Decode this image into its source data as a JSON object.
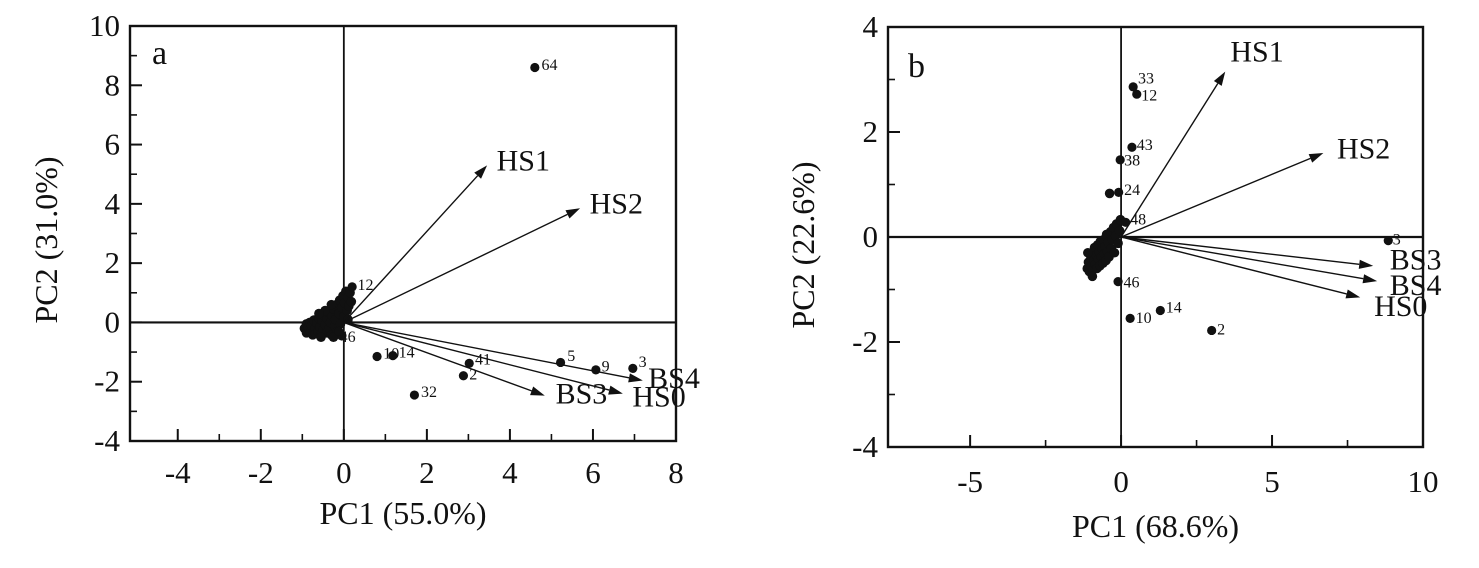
{
  "figure": {
    "description": "Two PCA biplot panels",
    "colors": {
      "ink": "#111111",
      "background": "#ffffff"
    }
  },
  "chart_data": [
    {
      "type": "scatter",
      "panel_letter": "a",
      "xlabel": "PC1 (55.0%)",
      "ylabel": "PC2 (31.0%)",
      "xlim": [
        -5.15,
        8
      ],
      "ylim": [
        -4,
        10
      ],
      "xticks": [
        -4,
        -2,
        0,
        2,
        4,
        6,
        8
      ],
      "yticks": [
        -4,
        -2,
        0,
        2,
        4,
        6,
        8,
        10
      ],
      "xticks_minor": [
        -3,
        -1,
        1,
        3,
        5,
        7
      ],
      "yticks_minor": [
        -3,
        -1,
        1,
        3,
        5,
        7,
        9
      ],
      "grid": false,
      "loadings": [
        {
          "name": "HS1",
          "x": 3.45,
          "y": 5.3,
          "lx": 3.68,
          "ly": 5.12
        },
        {
          "name": "HS2",
          "x": 5.69,
          "y": 3.85,
          "lx": 5.92,
          "ly": 3.68
        },
        {
          "name": "BS4",
          "x": 7.2,
          "y": -1.96,
          "lx": 7.33,
          "ly": -2.22
        },
        {
          "name": "BS3",
          "x": 4.84,
          "y": -2.47,
          "lx": 5.1,
          "ly": -2.74
        },
        {
          "name": "HS0",
          "x": 6.72,
          "y": -2.4,
          "lx": 6.95,
          "ly": -2.84
        }
      ],
      "labeled_points": [
        {
          "label": "64",
          "x": 4.6,
          "y": 8.6,
          "lx": 4.76,
          "ly": 8.52
        },
        {
          "label": "12",
          "x": 0.2,
          "y": 1.2,
          "lx": 0.33,
          "ly": 1.1
        },
        {
          "label": "46",
          "x": -0.12,
          "y": -0.3,
          "lx": -0.1,
          "ly": -0.66
        },
        {
          "label": "10",
          "x": 0.8,
          "y": -1.15,
          "lx": 0.95,
          "ly": -1.22
        },
        {
          "label": "14",
          "x": 1.18,
          "y": -1.12,
          "lx": 1.32,
          "ly": -1.18
        },
        {
          "label": "41",
          "x": 3.02,
          "y": -1.38,
          "lx": 3.16,
          "ly": -1.42
        },
        {
          "label": "2",
          "x": 2.88,
          "y": -1.8,
          "lx": 3.02,
          "ly": -1.92
        },
        {
          "label": "32",
          "x": 1.7,
          "y": -2.45,
          "lx": 1.86,
          "ly": -2.52
        },
        {
          "label": "5",
          "x": 5.22,
          "y": -1.35,
          "lx": 5.38,
          "ly": -1.3
        },
        {
          "label": "9",
          "x": 6.07,
          "y": -1.6,
          "lx": 6.21,
          "ly": -1.66
        },
        {
          "label": "3",
          "x": 6.96,
          "y": -1.55,
          "lx": 7.1,
          "ly": -1.5
        }
      ],
      "cluster_points": [
        [
          -0.95,
          -0.2
        ],
        [
          -0.9,
          -0.05
        ],
        [
          -0.9,
          -0.35
        ],
        [
          -0.85,
          -0.18
        ],
        [
          -0.82,
          0.0
        ],
        [
          -0.8,
          -0.32
        ],
        [
          -0.78,
          -0.1
        ],
        [
          -0.75,
          -0.42
        ],
        [
          -0.72,
          0.08
        ],
        [
          -0.7,
          -0.22
        ],
        [
          -0.68,
          -0.38
        ],
        [
          -0.65,
          -0.02
        ],
        [
          -0.62,
          -0.3
        ],
        [
          -0.6,
          0.15
        ],
        [
          -0.58,
          -0.15
        ],
        [
          -0.55,
          -0.4
        ],
        [
          -0.52,
          0.05
        ],
        [
          -0.5,
          -0.25
        ],
        [
          -0.48,
          0.25
        ],
        [
          -0.45,
          -0.08
        ],
        [
          -0.42,
          -0.35
        ],
        [
          -0.4,
          0.12
        ],
        [
          -0.38,
          0.35
        ],
        [
          -0.35,
          -0.2
        ],
        [
          -0.32,
          0.0
        ],
        [
          -0.3,
          -0.42
        ],
        [
          -0.28,
          0.22
        ],
        [
          -0.25,
          0.45
        ],
        [
          -0.22,
          -0.12
        ],
        [
          -0.2,
          0.1
        ],
        [
          -0.18,
          0.6
        ],
        [
          -0.15,
          -0.3
        ],
        [
          -0.12,
          0.3
        ],
        [
          -0.1,
          0.75
        ],
        [
          -0.08,
          -0.05
        ],
        [
          -0.05,
          0.5
        ],
        [
          -0.02,
          0.9
        ],
        [
          0.0,
          0.2
        ],
        [
          0.02,
          0.65
        ],
        [
          0.05,
          1.05
        ],
        [
          0.08,
          0.4
        ],
        [
          0.1,
          0.85
        ],
        [
          0.12,
          0.55
        ],
        [
          0.15,
          1.0
        ],
        [
          0.18,
          0.7
        ],
        [
          -0.3,
          0.6
        ],
        [
          -0.45,
          0.4
        ],
        [
          -0.6,
          0.3
        ],
        [
          -0.25,
          -0.5
        ],
        [
          -0.55,
          -0.5
        ],
        [
          -0.05,
          -0.45
        ],
        [
          0.1,
          0.1
        ]
      ]
    },
    {
      "type": "scatter",
      "panel_letter": "b",
      "xlabel": "PC1 (68.6%)",
      "ylabel": "PC2 (22.6%)",
      "xlim": [
        -7.72,
        10
      ],
      "ylim": [
        -4,
        4
      ],
      "xticks": [
        -5,
        0,
        5,
        10
      ],
      "yticks": [
        -4,
        -2,
        0,
        2,
        4
      ],
      "xticks_minor": [
        -2.5,
        2.5,
        7.5
      ],
      "yticks_minor": [
        -3,
        -1,
        1,
        3
      ],
      "grid": false,
      "loadings": [
        {
          "name": "HS1",
          "x": 3.45,
          "y": 3.15,
          "lx": 3.62,
          "ly": 3.34
        },
        {
          "name": "HS2",
          "x": 6.7,
          "y": 1.6,
          "lx": 7.15,
          "ly": 1.5
        },
        {
          "name": "BS3",
          "x": 8.35,
          "y": -0.55,
          "lx": 8.9,
          "ly": -0.62
        },
        {
          "name": "BS4",
          "x": 8.48,
          "y": -0.84,
          "lx": 8.9,
          "ly": -1.1
        },
        {
          "name": "HS0",
          "x": 7.92,
          "y": -1.15,
          "lx": 8.38,
          "ly": -1.5
        }
      ],
      "labeled_points": [
        {
          "label": "33",
          "x": 0.4,
          "y": 2.86,
          "lx": 0.56,
          "ly": 2.92
        },
        {
          "label": "12",
          "x": 0.52,
          "y": 2.72,
          "lx": 0.67,
          "ly": 2.6
        },
        {
          "label": "43",
          "x": 0.36,
          "y": 1.71,
          "lx": 0.52,
          "ly": 1.66
        },
        {
          "label": "38",
          "x": -0.03,
          "y": 1.47,
          "lx": 0.1,
          "ly": 1.36
        },
        {
          "label": "24",
          "x": -0.08,
          "y": 0.85,
          "lx": 0.1,
          "ly": 0.8
        },
        {
          "label": "48",
          "x": 0.15,
          "y": 0.28,
          "lx": 0.3,
          "ly": 0.24
        },
        {
          "label": "46",
          "x": -0.1,
          "y": -0.85,
          "lx": 0.08,
          "ly": -0.96
        },
        {
          "label": "10",
          "x": 0.3,
          "y": -1.55,
          "lx": 0.48,
          "ly": -1.64
        },
        {
          "label": "14",
          "x": 1.3,
          "y": -1.4,
          "lx": 1.48,
          "ly": -1.44
        },
        {
          "label": "2",
          "x": 3.0,
          "y": -1.78,
          "lx": 3.18,
          "ly": -1.86
        },
        {
          "label": "3",
          "x": 8.85,
          "y": -0.07,
          "lx": 9.0,
          "ly": -0.14
        }
      ],
      "cluster_points": [
        [
          -1.12,
          -0.6
        ],
        [
          -1.08,
          -0.48
        ],
        [
          -1.05,
          -0.66
        ],
        [
          -1.0,
          -0.4
        ],
        [
          -0.98,
          -0.56
        ],
        [
          -0.95,
          -0.3
        ],
        [
          -0.92,
          -0.62
        ],
        [
          -0.9,
          -0.45
        ],
        [
          -0.88,
          -0.2
        ],
        [
          -0.85,
          -0.52
        ],
        [
          -0.82,
          -0.35
        ],
        [
          -0.8,
          -0.6
        ],
        [
          -0.78,
          -0.15
        ],
        [
          -0.75,
          -0.42
        ],
        [
          -0.72,
          -0.28
        ],
        [
          -0.7,
          -0.55
        ],
        [
          -0.68,
          -0.08
        ],
        [
          -0.65,
          -0.38
        ],
        [
          -0.62,
          -0.22
        ],
        [
          -0.6,
          -0.5
        ],
        [
          -0.58,
          -0.05
        ],
        [
          -0.55,
          -0.32
        ],
        [
          -0.52,
          -0.18
        ],
        [
          -0.5,
          -0.45
        ],
        [
          -0.48,
          0.05
        ],
        [
          -0.45,
          -0.28
        ],
        [
          -0.42,
          -0.1
        ],
        [
          -0.4,
          -0.38
        ],
        [
          -0.35,
          0.1
        ],
        [
          -0.32,
          -0.22
        ],
        [
          -0.3,
          -0.05
        ],
        [
          -0.25,
          0.18
        ],
        [
          -0.22,
          -0.3
        ],
        [
          -0.18,
          0.02
        ],
        [
          -0.15,
          0.25
        ],
        [
          -0.1,
          -0.12
        ],
        [
          -0.05,
          0.12
        ],
        [
          0.0,
          0.3
        ],
        [
          -0.38,
          0.83
        ],
        [
          -0.02,
          0.33
        ],
        [
          -0.95,
          -0.75
        ],
        [
          -1.1,
          -0.3
        ]
      ]
    }
  ]
}
